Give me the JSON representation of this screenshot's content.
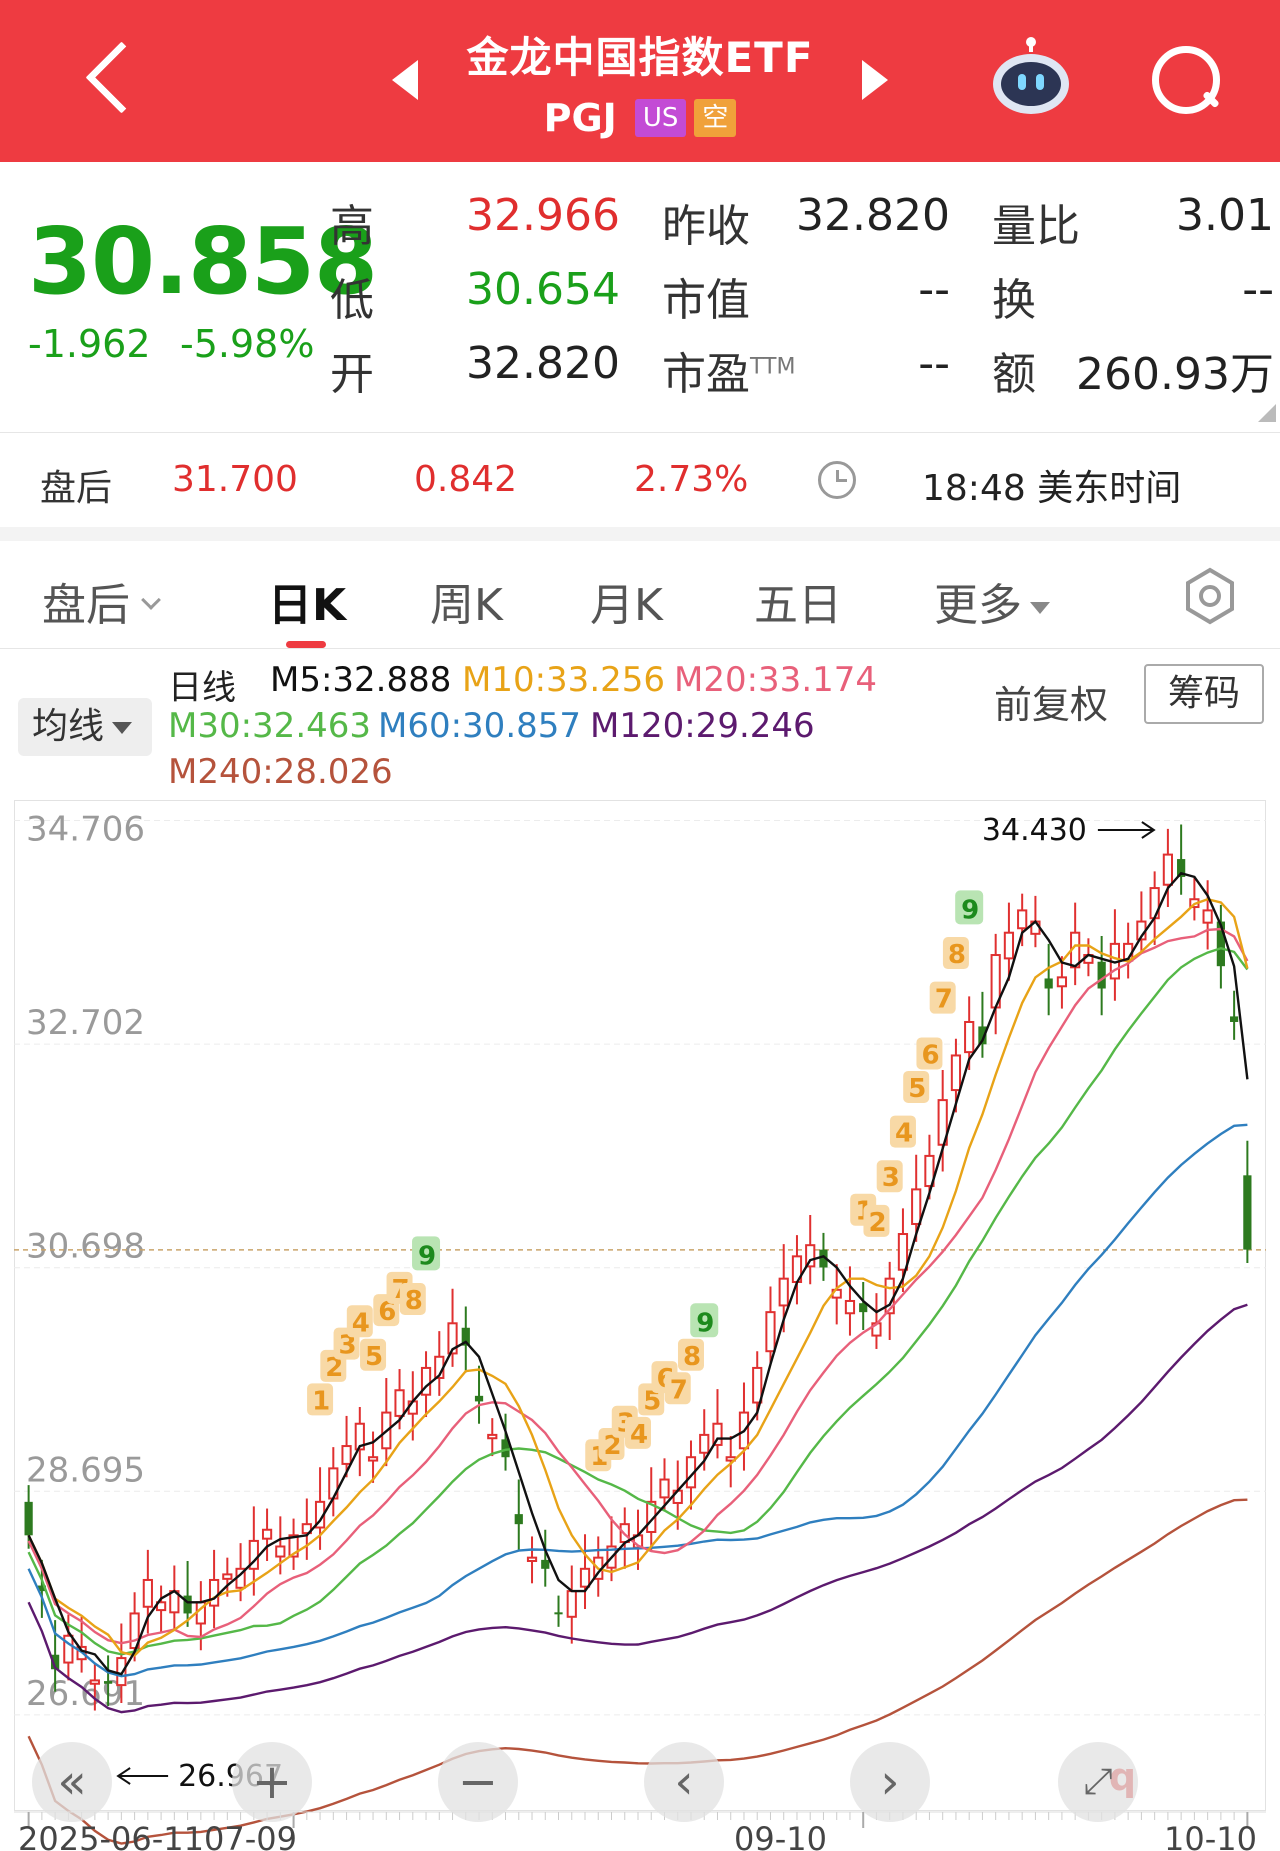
{
  "header": {
    "title": "金龙中国指数ETF",
    "ticker": "PGJ",
    "tag_market": "US",
    "tag_short": "空"
  },
  "quote": {
    "price": "30.858",
    "change": "-1.962",
    "change_pct": "-5.98%",
    "high_label": "高",
    "high": "32.966",
    "low_label": "低",
    "low": "30.654",
    "open_label": "开",
    "open": "32.820",
    "prev_close_label": "昨收",
    "prev_close": "32.820",
    "mktcap_label": "市值",
    "mktcap": "--",
    "pe_label": "市盈",
    "pe_sup": "TTM",
    "pe": "--",
    "vol_ratio_label": "量比",
    "vol_ratio": "3.01",
    "turnover_label": "换",
    "turnover": "--",
    "amount_label": "额",
    "amount": "260.93万"
  },
  "after_hours": {
    "label": "盘后",
    "price": "31.700",
    "change": "0.842",
    "change_pct": "2.73%",
    "time": "18:48 美东时间"
  },
  "tabs": {
    "after": "盘后",
    "day": "日K",
    "week": "周K",
    "month": "月K",
    "five_day": "五日",
    "more": "更多"
  },
  "indicators": {
    "ma_select": "均线",
    "line_label": "日线",
    "m5": "M5:32.888",
    "m10": "M10:33.256",
    "m20": "M20:33.174",
    "m30": "M30:32.463",
    "m60": "M60:30.857",
    "m120": "M120:29.246",
    "m240": "M240:28.026",
    "adjust": "前复权",
    "chips": "筹码",
    "colors": {
      "m5": "#111111",
      "m10": "#e8a317",
      "m20": "#e8607a",
      "m30": "#55b848",
      "m60": "#2f7fbf",
      "m120": "#5c1a6e",
      "m240": "#b5533c"
    }
  },
  "chart_data": {
    "type": "candlestick",
    "y_ticks": [
      "34.706",
      "32.702",
      "30.698",
      "28.695",
      "26.691"
    ],
    "ylim": [
      26.69,
      34.71
    ],
    "x_ticks": [
      "2025-06-11",
      "07-09",
      "09-10",
      "10-10"
    ],
    "max_annotation": "34.430",
    "min_annotation": "26.967",
    "reference_line": 30.858,
    "candles_close": [
      28.3,
      27.8,
      27.1,
      27.4,
      27.3,
      27.0,
      26.97,
      27.2,
      27.6,
      27.9,
      27.7,
      27.8,
      27.6,
      27.7,
      27.9,
      27.95,
      28.0,
      28.25,
      28.35,
      28.2,
      28.3,
      28.4,
      28.6,
      28.9,
      29.1,
      29.3,
      29.0,
      29.4,
      29.6,
      29.5,
      29.8,
      29.9,
      30.2,
      30.0,
      29.5,
      29.2,
      29.0,
      28.4,
      28.1,
      28.0,
      27.6,
      27.8,
      28.0,
      28.1,
      28.2,
      28.4,
      28.3,
      28.6,
      28.8,
      28.7,
      29.0,
      29.2,
      29.3,
      29.0,
      29.4,
      29.8,
      30.3,
      30.6,
      30.8,
      30.9,
      30.7,
      30.5,
      30.4,
      30.3,
      30.2,
      30.6,
      31.0,
      31.4,
      31.7,
      32.2,
      32.6,
      32.9,
      32.7,
      33.5,
      33.7,
      33.9,
      33.8,
      33.2,
      33.3,
      33.7,
      33.5,
      33.2,
      33.6,
      33.6,
      33.8,
      34.1,
      34.4,
      34.2,
      34.0,
      33.9,
      33.4,
      32.9,
      30.86
    ],
    "candle_up": "#e03030",
    "candle_down": "#2d7a1f",
    "td_markers_red": [
      "1",
      "2",
      "3",
      "4",
      "5",
      "6",
      "7",
      "8"
    ],
    "td_markers_green": [
      "9"
    ],
    "td_markers_red_2": [
      "1",
      "2",
      "3",
      "4",
      "5",
      "6",
      "7",
      "8"
    ],
    "td_markers_green_2": [
      "9"
    ],
    "td_markers_red_3": [
      "1",
      "2",
      "3",
      "4",
      "5",
      "6",
      "7",
      "8"
    ],
    "td_markers_green_3": [
      "9"
    ],
    "q_marker": "q"
  }
}
